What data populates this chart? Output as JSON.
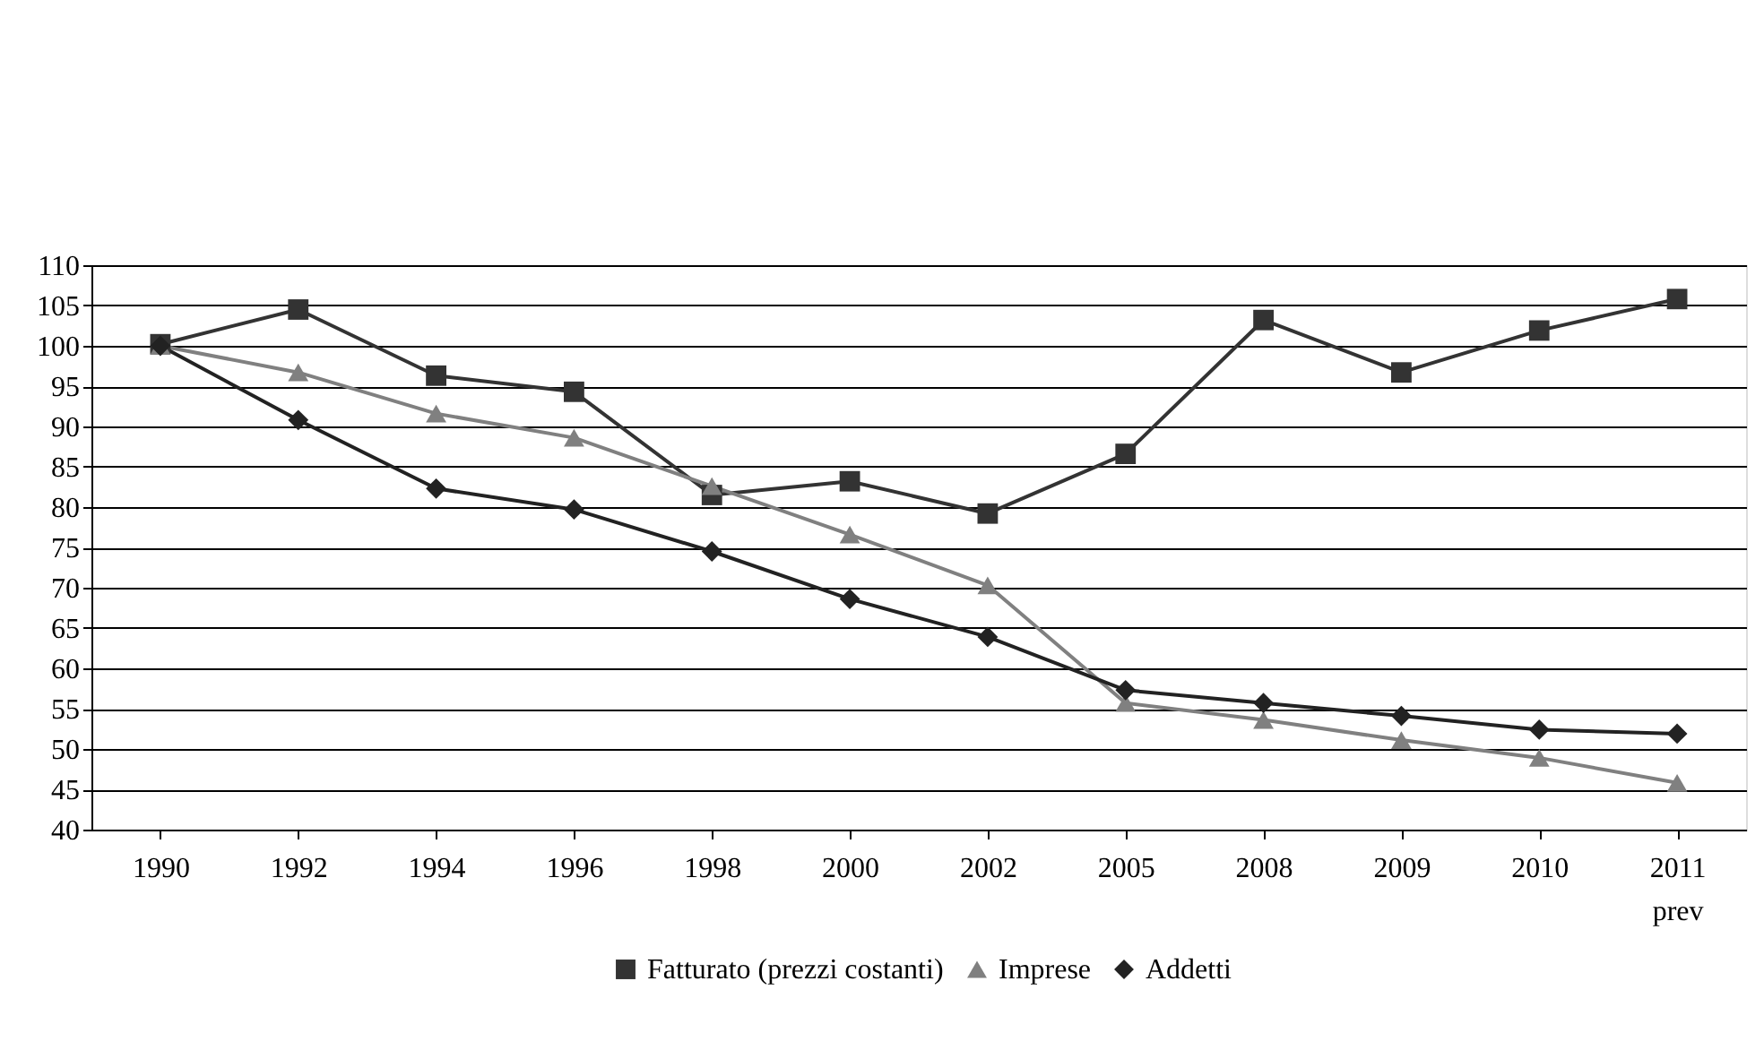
{
  "chart_data": {
    "type": "line",
    "categories": [
      "1990",
      "1992",
      "1994",
      "1996",
      "1998",
      "2000",
      "2002",
      "2005",
      "2008",
      "2009",
      "2010",
      "2011 prev"
    ],
    "series": [
      {
        "name": "Fatturato (prezzi costanti)",
        "color": "#333333",
        "marker": "square",
        "values": [
          100.2,
          104.5,
          96.3,
          94.3,
          81.5,
          83.2,
          79.2,
          86.6,
          103.2,
          96.7,
          101.9,
          105.8
        ]
      },
      {
        "name": "Imprese",
        "color": "#808080",
        "marker": "triangle",
        "values": [
          100,
          96.7,
          91.6,
          88.6,
          82.6,
          76.6,
          70.3,
          55.7,
          53.6,
          51.1,
          48.9,
          45.8
        ]
      },
      {
        "name": "Addetti",
        "color": "#222222",
        "marker": "diamond",
        "values": [
          100,
          90.8,
          82.3,
          79.7,
          74.5,
          68.6,
          63.9,
          57.3,
          55.7,
          54.1,
          52.4,
          51.9
        ]
      }
    ],
    "ylim": [
      40,
      110
    ],
    "yticks": [
      40,
      45,
      50,
      55,
      60,
      65,
      70,
      75,
      80,
      85,
      90,
      95,
      100,
      105,
      110
    ],
    "grid": "y",
    "legend": "bottom"
  }
}
